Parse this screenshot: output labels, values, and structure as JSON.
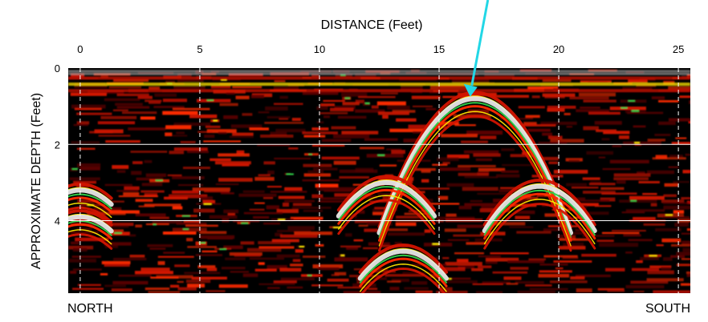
{
  "chart_data": {
    "type": "heatmap",
    "title": "DISTANCE (Feet)",
    "xlabel": "DISTANCE (Feet)",
    "ylabel": "APPROXIMATE DEPTH (Feet)",
    "xlim": [
      -0.5,
      25.5
    ],
    "ylim": [
      0,
      5.9
    ],
    "x_ticks": [
      0,
      5,
      10,
      15,
      20,
      25
    ],
    "y_ticks": [
      0,
      2,
      4
    ],
    "x_tick_labels": [
      "0",
      "5",
      "10",
      "15",
      "20",
      "25"
    ],
    "y_tick_labels": [
      "0",
      "2",
      "4"
    ],
    "vertical_gridlines": [
      0,
      5,
      10,
      15,
      20,
      25
    ],
    "horizontal_gridlines": [
      2,
      4
    ],
    "left_end_label": "NORTH",
    "right_end_label": "SOUTH",
    "hyperbolas": [
      {
        "apex_x": 16.5,
        "apex_depth": 0.8,
        "spread": 4.0
      },
      {
        "apex_x": 12.8,
        "apex_depth": 3.0,
        "spread": 2.0
      },
      {
        "apex_x": 19.2,
        "apex_depth": 3.1,
        "spread": 2.3
      },
      {
        "apex_x": 13.5,
        "apex_depth": 4.8,
        "spread": 1.8
      },
      {
        "apex_x": 0.0,
        "apex_depth": 3.2,
        "spread": 1.3
      },
      {
        "apex_x": 0.0,
        "apex_depth": 3.9,
        "spread": 1.3
      }
    ],
    "arrow": {
      "target_x": 16.3,
      "target_depth": 0.75
    },
    "colors": {
      "background": "#000000",
      "low": "#5a0000",
      "mid": "#d21400",
      "high": "#ff2a00",
      "hot": "#ffe600",
      "peak": "#2fd14a",
      "reflector": "#e6e6e6",
      "arrow": "#22d7e6",
      "gridline": "#ffffff"
    }
  }
}
